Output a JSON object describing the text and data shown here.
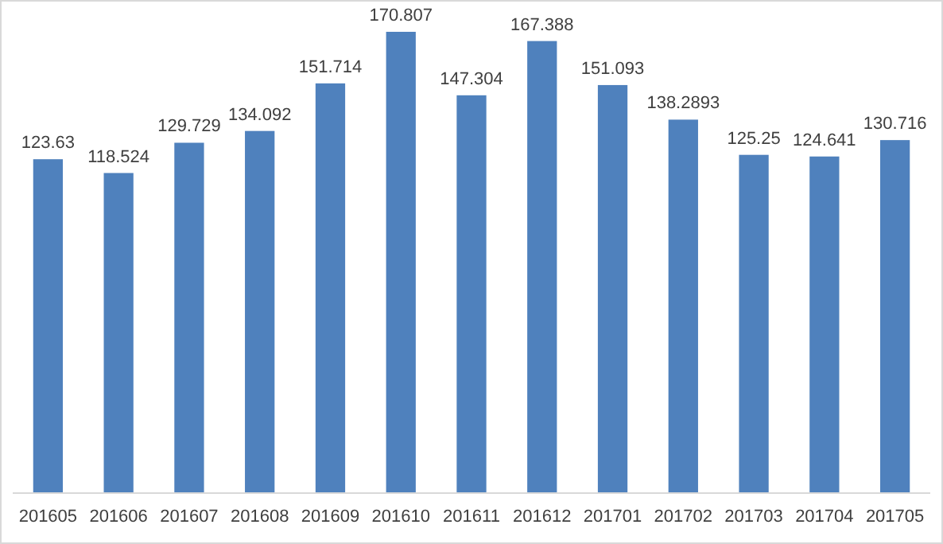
{
  "chart_data": {
    "type": "bar",
    "categories": [
      "201605",
      "201606",
      "201607",
      "201608",
      "201609",
      "201610",
      "201611",
      "201612",
      "201701",
      "201702",
      "201703",
      "201704",
      "201705"
    ],
    "values": [
      123.63,
      118.524,
      129.729,
      134.092,
      151.714,
      170.807,
      147.304,
      167.388,
      151.093,
      138.2893,
      125.25,
      124.641,
      130.716
    ],
    "color": "#4f81bd",
    "data_labels": true,
    "tick_labels": "x"
  }
}
